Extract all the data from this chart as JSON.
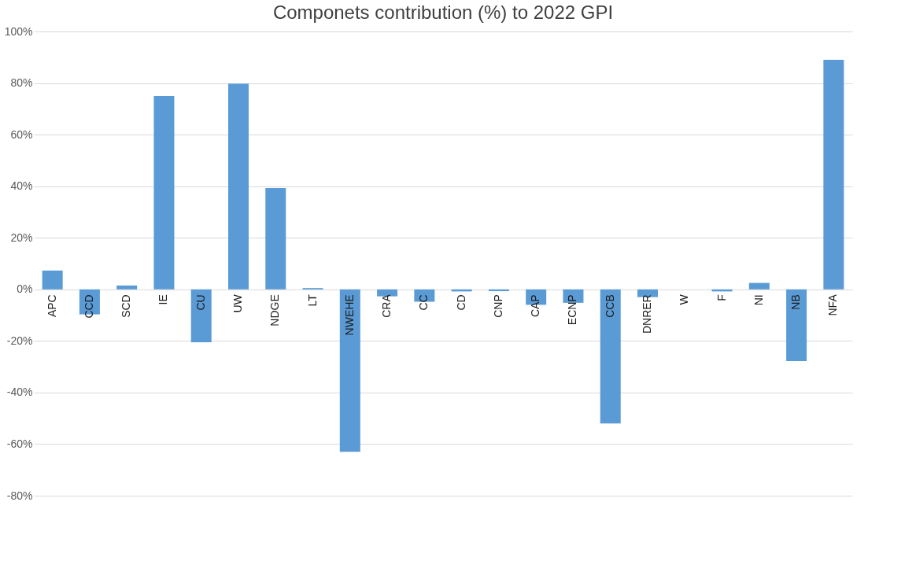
{
  "chart_data": {
    "type": "bar",
    "title": "Componets contribution (%) to 2022 GPI",
    "categories": [
      "APC",
      "CCD",
      "SCD",
      "IE",
      "CU",
      "UW",
      "NDGE",
      "LT",
      "NWEHE",
      "CRA",
      "CC",
      "CD",
      "CNP",
      "CAP",
      "ECNP",
      "CCB",
      "DNRER",
      "W",
      "F",
      "NI",
      "NB",
      "NFA"
    ],
    "values": [
      7.3,
      -9.7,
      1.5,
      75,
      -20.5,
      79.8,
      39.3,
      0.5,
      -63,
      -2.7,
      -4.8,
      -0.8,
      -0.7,
      -6,
      -5.2,
      -52,
      -3,
      0,
      -0.8,
      2.5,
      -27.8,
      89
    ],
    "color": "#5b9bd5",
    "ylim": [
      -80,
      100
    ],
    "yticks": [
      {
        "value": -80,
        "label": "-80%"
      },
      {
        "value": -60,
        "label": "-60%"
      },
      {
        "value": -40,
        "label": "-40%"
      },
      {
        "value": -20,
        "label": "-20%"
      },
      {
        "value": 0,
        "label": "0%"
      },
      {
        "value": 20,
        "label": "20%"
      },
      {
        "value": 40,
        "label": "40%"
      },
      {
        "value": 60,
        "label": "60%"
      },
      {
        "value": 80,
        "label": "80%"
      },
      {
        "value": 100,
        "label": "100%"
      }
    ],
    "grid": "y",
    "legend": false
  }
}
